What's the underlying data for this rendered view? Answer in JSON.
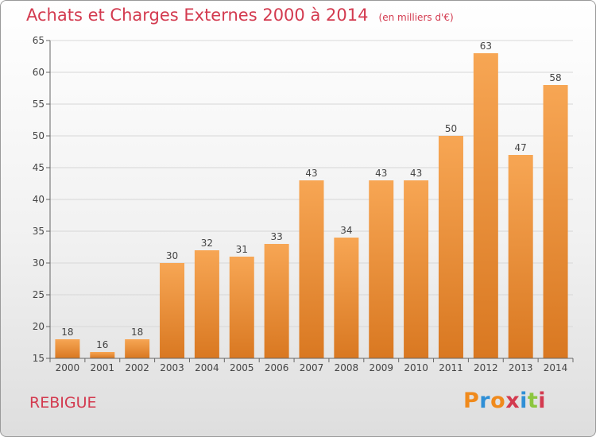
{
  "header": {
    "title": "Achats et Charges Externes 2000 à 2014",
    "unit": "(en milliers d'€)"
  },
  "footer": {
    "commune": "REBIGUE",
    "logo_text": "Proxiti",
    "logo_colors": [
      "#f08a1c",
      "#2f8fd6",
      "#f08a1c",
      "#d33a4f",
      "#2f8fd6",
      "#8cc63f",
      "#d33a4f"
    ]
  },
  "chart_data": {
    "type": "bar",
    "title": "Achats et Charges Externes 2000 à 2014",
    "subtitle": "(en milliers d'€)",
    "categories": [
      "2000",
      "2001",
      "2002",
      "2003",
      "2004",
      "2005",
      "2006",
      "2007",
      "2008",
      "2009",
      "2010",
      "2011",
      "2012",
      "2013",
      "2014"
    ],
    "values": [
      18,
      16,
      18,
      30,
      32,
      31,
      33,
      43,
      34,
      43,
      43,
      50,
      63,
      47,
      58
    ],
    "data_labels": [
      "18",
      "16",
      "18",
      "30",
      "32",
      "31",
      "33",
      "43",
      "34",
      "43",
      "43",
      "50",
      "63",
      "47",
      "58"
    ],
    "ylim": [
      15,
      65
    ],
    "yticks": [
      15,
      20,
      25,
      30,
      35,
      40,
      45,
      50,
      55,
      60,
      65
    ],
    "xlabel": "",
    "ylabel": "",
    "grid": true,
    "bar_color_top": "#f7a654",
    "bar_color_bottom": "#d97821"
  }
}
